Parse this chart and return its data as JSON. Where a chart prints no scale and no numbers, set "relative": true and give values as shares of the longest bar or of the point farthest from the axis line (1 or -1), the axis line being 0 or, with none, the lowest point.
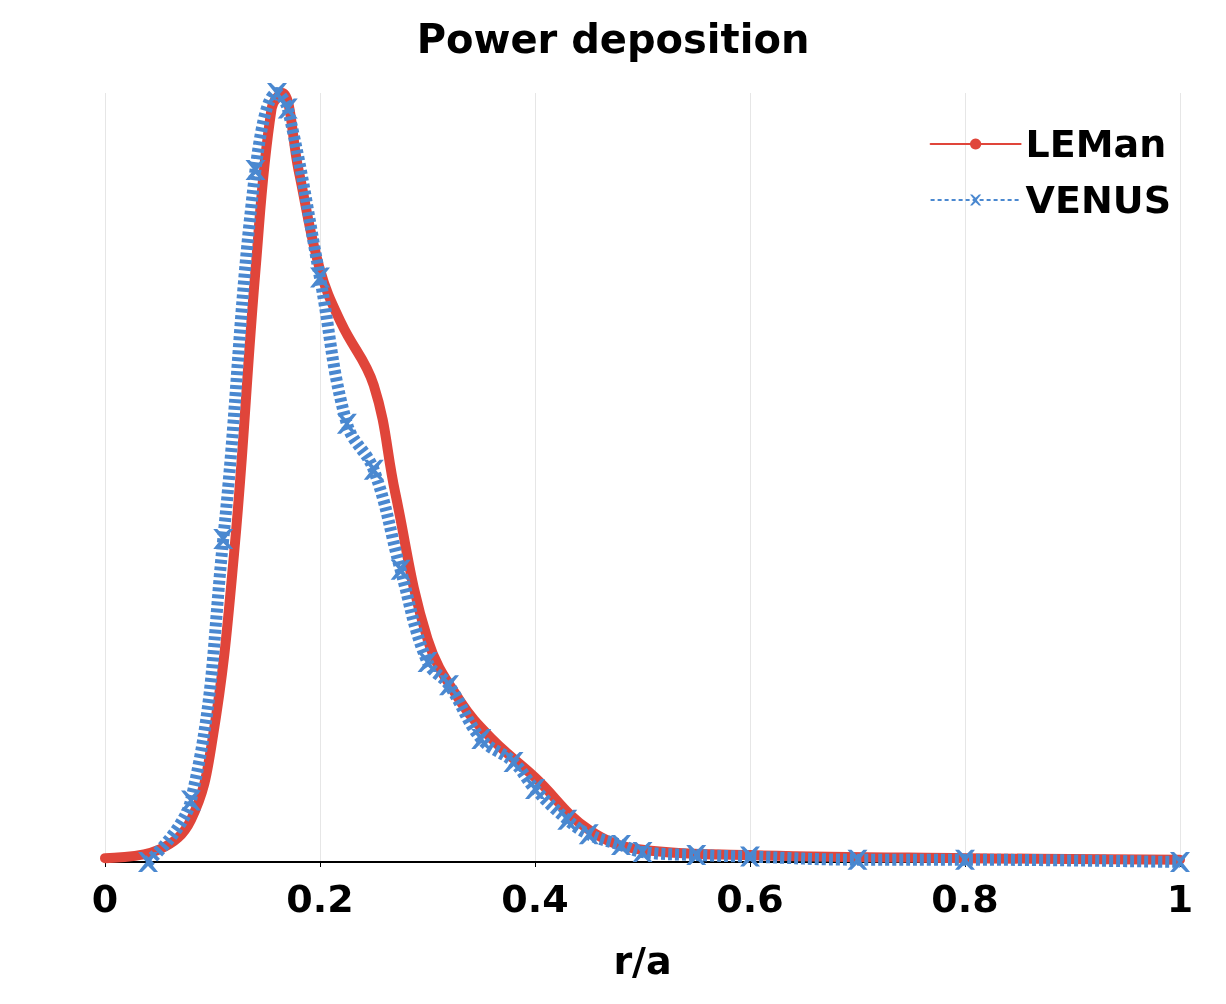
{
  "chart_data": {
    "type": "line",
    "title": "Power deposition",
    "xlabel": "r/a",
    "relative": true,
    "xlim": [
      0,
      1
    ],
    "xticks": [
      0,
      0.2,
      0.4,
      0.6,
      0.8,
      1
    ],
    "grid": "x",
    "legend": "top right",
    "series": [
      {
        "name": "LEMan",
        "color": "#e0453a",
        "line_style": "solid",
        "marker": "none",
        "x": [
          0,
          0.05,
          0.08,
          0.1,
          0.12,
          0.14,
          0.155,
          0.165,
          0.18,
          0.2,
          0.22,
          0.25,
          0.27,
          0.3,
          0.33,
          0.36,
          0.4,
          0.45,
          0.5,
          0.6,
          0.8,
          1
        ],
        "values": [
          0.005,
          0.016,
          0.055,
          0.16,
          0.4,
          0.77,
          0.98,
          1,
          0.9,
          0.77,
          0.7,
          0.62,
          0.48,
          0.29,
          0.21,
          0.16,
          0.11,
          0.042,
          0.016,
          0.009,
          0.005,
          0.003
        ]
      },
      {
        "name": "VENUS",
        "color": "#4a88d0",
        "line_style": "dotted",
        "marker": "cross",
        "x": [
          0.04,
          0.08,
          0.11,
          0.14,
          0.16,
          0.17,
          0.2,
          0.225,
          0.25,
          0.275,
          0.3,
          0.32,
          0.35,
          0.38,
          0.4,
          0.43,
          0.45,
          0.48,
          0.5,
          0.55,
          0.6,
          0.7,
          0.8,
          1
        ],
        "values": [
          0,
          0.08,
          0.42,
          0.9,
          1,
          0.98,
          0.76,
          0.57,
          0.51,
          0.38,
          0.26,
          0.23,
          0.16,
          0.13,
          0.095,
          0.055,
          0.036,
          0.022,
          0.013,
          0.009,
          0.007,
          0.003,
          0.003,
          0
        ]
      }
    ]
  }
}
